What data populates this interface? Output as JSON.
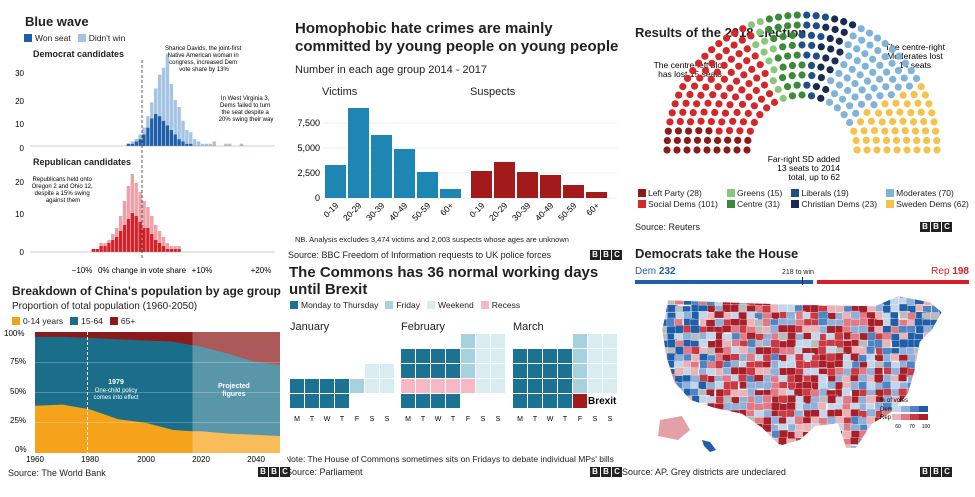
{
  "colors": {
    "dem_won": "#1f5ea8",
    "dem_lost": "#a5c3e3",
    "rep_won": "#d61f26",
    "rep_lost": "#f0a0a7",
    "teal": "#1c7293",
    "teal_light": "#c8e0e8",
    "pink": "#f6b8c4",
    "sky": "#a8d1df",
    "orange": "#f5a31a",
    "dark_teal": "#1b6e8a",
    "maroon": "#8b1a1a",
    "victim": "#1d86b3",
    "suspect": "#a31a1a"
  },
  "blue_wave": {
    "title": "Blue wave",
    "legend": [
      "Won seat",
      "Didn't win"
    ],
    "dem_title": "Democrat candidates",
    "rep_title": "Republican candidates",
    "dem_annotation_1": [
      "Sharice Davids, the joint-first",
      "Native American woman in",
      "congress, increased Dem",
      "vote share by 13%"
    ],
    "dem_annotation_2": [
      "In West Virginia 3,",
      "Dems failed to turn",
      "the seat despite a",
      "20% swing their way"
    ],
    "rep_annotation": [
      "Republicans held onto",
      "Oregon 2 and Ohio 12,",
      "despite a 15% swing",
      "against them"
    ],
    "dem_yticks": [
      "0",
      "10",
      "20",
      "30"
    ],
    "rep_yticks": [
      "0",
      "10",
      "20"
    ],
    "xticks": [
      "−10%",
      "0% change in vote share",
      "+10%",
      "+20%"
    ],
    "chart_data": [
      {
        "type": "bar",
        "title": "Democrat candidates",
        "xlabel": "0% change in vote share",
        "series": [
          {
            "name": "Won seat",
            "values": [
              0,
              0,
              0,
              0,
              0,
              0,
              0,
              0,
              0,
              0,
              0,
              0,
              0,
              0,
              0,
              0,
              0,
              0,
              0,
              0,
              0,
              0,
              0,
              1,
              1,
              2,
              3,
              5,
              8,
              12,
              14,
              13,
              11,
              9,
              7,
              5,
              3,
              2,
              1,
              1,
              0,
              0,
              0,
              0,
              0,
              0,
              0,
              0,
              0,
              0,
              0,
              0,
              0,
              0,
              0,
              0,
              0,
              0,
              0,
              0
            ]
          },
          {
            "name": "Didn't win",
            "values": [
              0,
              0,
              0,
              0,
              0,
              0,
              0,
              0,
              0,
              0,
              0,
              0,
              0,
              0,
              0,
              0,
              0,
              0,
              0,
              0,
              0,
              0,
              0,
              0,
              1,
              1,
              2,
              3,
              5,
              7,
              11,
              18,
              23,
              31,
              20,
              15,
              14,
              9,
              6,
              5,
              3,
              2,
              1,
              1,
              1,
              2,
              0,
              0,
              1,
              1,
              0,
              0,
              1,
              0,
              0,
              0,
              0,
              0,
              0,
              0
            ]
          }
        ],
        "ylim": [
          0,
          35
        ]
      },
      {
        "type": "bar",
        "title": "Republican candidates",
        "series": [
          {
            "name": "Won seat",
            "values": [
              0,
              0,
              0,
              0,
              0,
              0,
              0,
              0,
              0,
              0,
              0,
              0,
              0,
              0,
              1,
              1,
              2,
              2,
              3,
              4,
              5,
              7,
              9,
              11,
              13,
              12,
              10,
              8,
              8,
              6,
              4,
              3,
              2,
              1,
              1,
              1,
              1,
              0,
              0,
              0,
              0,
              0,
              0,
              0,
              0,
              0,
              0,
              0,
              0,
              0,
              0,
              0,
              0,
              0,
              0,
              0,
              0,
              0,
              0,
              0
            ]
          },
          {
            "name": "Didn't win",
            "values": [
              0,
              0,
              0,
              0,
              0,
              0,
              0,
              0,
              0,
              0,
              0,
              0,
              0,
              0,
              0,
              0,
              1,
              1,
              1,
              2,
              3,
              5,
              8,
              11,
              13,
              11,
              10,
              9,
              7,
              6,
              5,
              4,
              3,
              2,
              1,
              1,
              1,
              0,
              0,
              0,
              0,
              0,
              0,
              0,
              0,
              0,
              0,
              0,
              0,
              0,
              0,
              0,
              0,
              0,
              0,
              0,
              0,
              0,
              0,
              0
            ]
          }
        ],
        "ylim": [
          0,
          25
        ]
      }
    ]
  },
  "hate": {
    "title": "Homophobic hate crimes are mainly committed by young people on young people",
    "subtitle": "Number in each age group 2014 - 2017",
    "victims_label": "Victims",
    "suspects_label": "Suspects",
    "yticks": [
      "7,500",
      "5,000",
      "2,500",
      "0"
    ],
    "note": "NB. Analysis excludes 3,474 victims and 2,003 suspects whose ages are unknown",
    "source": "Source: BBC Freedom of Information requests to UK police forces",
    "chart_data": {
      "type": "bar",
      "categories": [
        "0-19",
        "20-29",
        "30-39",
        "40-49",
        "50-59",
        "60+"
      ],
      "series": [
        {
          "name": "Victims",
          "values": [
            3300,
            9000,
            6300,
            4900,
            2600,
            900
          ]
        },
        {
          "name": "Suspects",
          "values": [
            2700,
            3600,
            2600,
            2300,
            1300,
            600
          ]
        }
      ],
      "ylim": [
        0,
        10000
      ]
    }
  },
  "election": {
    "title": "Results of the 2018 election",
    "ann_left": [
      "The centre-left bloc",
      "has lost 15 seats"
    ],
    "ann_right": [
      "The centre-right",
      "Moderates lost",
      "14 seats"
    ],
    "ann_sd": [
      "Far-right SD added",
      "13 seats to 2014",
      "total, up to 62"
    ],
    "source": "Source: Reuters",
    "chart_data": {
      "type": "pie",
      "parties": [
        {
          "name": "Left Party",
          "seats": 28,
          "color": "#8b1a1a"
        },
        {
          "name": "Social Dems",
          "seats": 101,
          "color": "#d62728"
        },
        {
          "name": "Greens",
          "seats": 15,
          "color": "#8ac77b"
        },
        {
          "name": "Centre",
          "seats": 31,
          "color": "#3a8a3a"
        },
        {
          "name": "Liberals",
          "seats": 19,
          "color": "#1e4f8a"
        },
        {
          "name": "Christian Dems",
          "seats": 23,
          "color": "#1a2a50"
        },
        {
          "name": "Moderates",
          "seats": 70,
          "color": "#7fb3d9"
        },
        {
          "name": "Sweden Dems",
          "seats": 62,
          "color": "#f5c24c"
        }
      ]
    }
  },
  "house": {
    "title": "Democrats take the House",
    "dem_label": "Dem",
    "dem_seats": "232",
    "rep_label": "Rep",
    "rep_seats": "198",
    "win_label": "218 to win",
    "legend_title": "% of votes",
    "legend_dem": "Dem",
    "legend_rep": "Rep",
    "legend_ticks": [
      "60",
      "70",
      "100"
    ],
    "source": "Source: AP. Grey districts are undeclared",
    "chart_data": {
      "type": "bar",
      "categories": [
        "Dem",
        "Rep"
      ],
      "values": [
        232,
        198
      ],
      "threshold": 218,
      "total": 435
    }
  },
  "china": {
    "title": "Breakdown of China's population by age group",
    "subtitle": "Proportion of total population (1960-2050)",
    "legend": [
      "0-14 years",
      "15-64",
      "65+"
    ],
    "yticks": [
      "100%",
      "75%",
      "50%",
      "25%",
      "0%"
    ],
    "xticks": [
      "1960",
      "1980",
      "2000",
      "2020",
      "2040"
    ],
    "ann_policy_year": "1979",
    "ann_policy": [
      "One-child policy",
      "comes into effect"
    ],
    "ann_projected": [
      "Projected",
      "figures"
    ],
    "source": "Source: The World Bank",
    "chart_data": {
      "type": "area",
      "x": [
        1960,
        1970,
        1980,
        1990,
        2000,
        2010,
        2017,
        2020,
        2030,
        2040,
        2050
      ],
      "series": [
        {
          "name": "0-14 years",
          "values": [
            39,
            40,
            36,
            28,
            25,
            19,
            18,
            18,
            16,
            15,
            14
          ]
        },
        {
          "name": "15-64",
          "values": [
            57,
            56,
            59,
            66,
            68,
            73,
            71,
            70,
            66,
            60,
            59
          ]
        },
        {
          "name": "65+",
          "values": [
            4,
            4,
            5,
            6,
            7,
            8,
            11,
            12,
            18,
            25,
            27
          ]
        }
      ],
      "ylim": [
        0,
        100
      ]
    }
  },
  "commons": {
    "title": "The Commons has 36 normal working days until Brexit",
    "legend": [
      "Monday to Thursday",
      "Friday",
      "Weekend",
      "Recess"
    ],
    "months": [
      "January",
      "February",
      "March"
    ],
    "days": [
      "M",
      "T",
      "W",
      "T",
      "F",
      "S",
      "S"
    ],
    "brexit_label": "Brexit",
    "note": "Note: The House of Commons sometimes sits on Fridays to debate individual MPs' bills",
    "source": "Source: Parliament"
  }
}
